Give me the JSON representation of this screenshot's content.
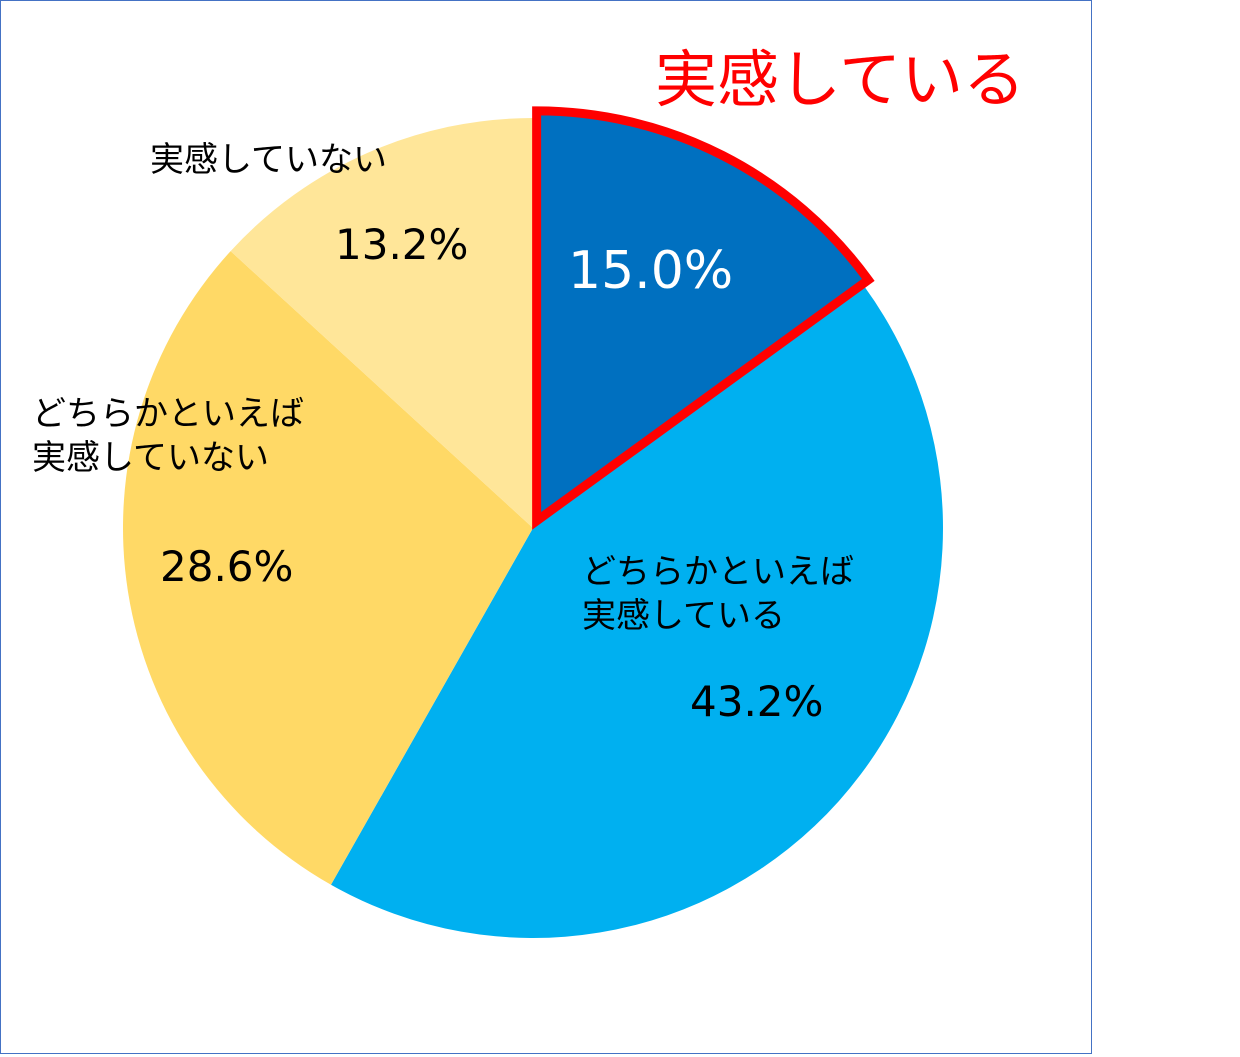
{
  "chart_data": {
    "type": "pie",
    "categories": [
      "実感している",
      "どちらかといえば\n実感している",
      "どちらかといえば\n実感していない",
      "実感していない"
    ],
    "values": [
      15.0,
      43.2,
      28.6,
      13.2
    ],
    "value_labels": [
      "15.0%",
      "43.2%",
      "28.6%",
      "13.2%"
    ],
    "colors": [
      "#0070C0",
      "#00B0F0",
      "#FFD966",
      "#FFE699"
    ],
    "highlight_index": 0,
    "highlight_color": "#FF0000"
  }
}
